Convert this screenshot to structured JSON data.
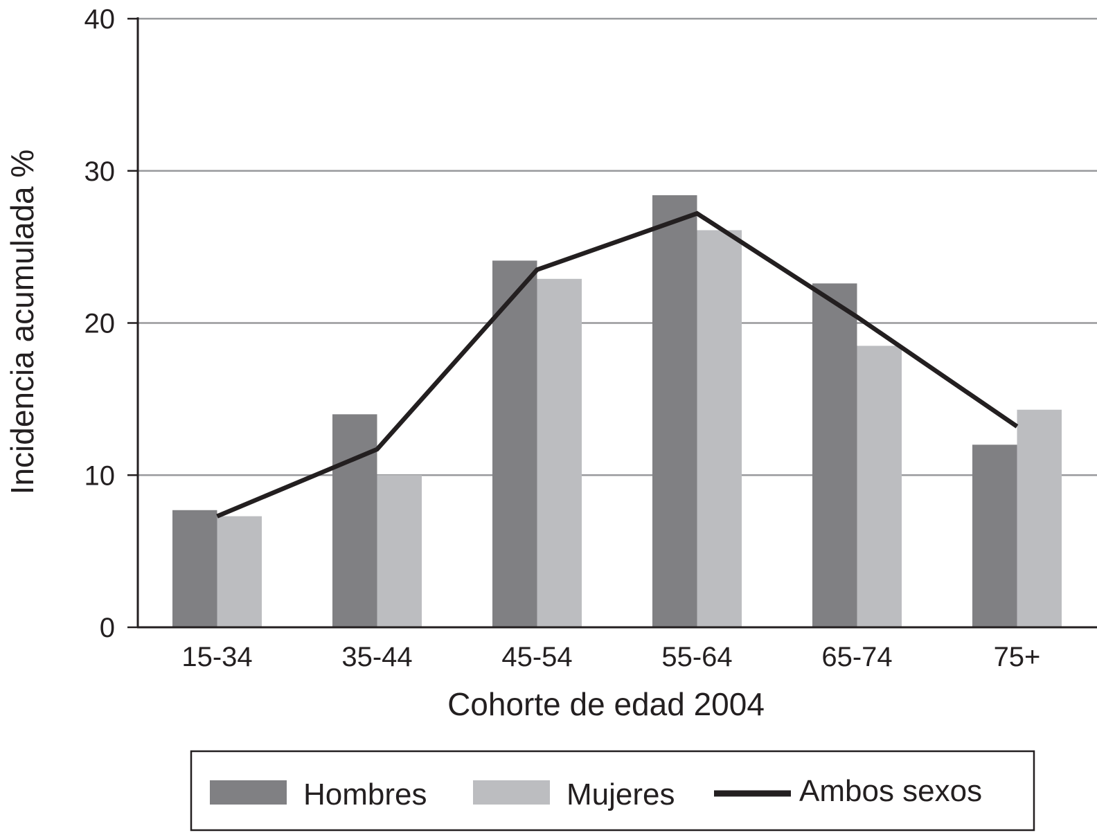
{
  "chart_data": {
    "type": "bar",
    "xlabel": "Cohorte de edad 2004",
    "ylabel": "Incidencia acumulada %",
    "categories": [
      "15-34",
      "35-44",
      "45-54",
      "55-64",
      "65-74",
      "75+"
    ],
    "ylim": [
      0,
      40
    ],
    "yticks": [
      "0",
      "10",
      "20",
      "30",
      "40"
    ],
    "grid": true,
    "legend_position": "bottom",
    "series": [
      {
        "name": "Hombres",
        "kind": "bar",
        "color": "#808083",
        "values": [
          7.7,
          14.0,
          24.1,
          28.4,
          22.6,
          12.0
        ]
      },
      {
        "name": "Mujeres",
        "kind": "bar",
        "color": "#bcbdc0",
        "values": [
          7.3,
          10.0,
          22.9,
          26.1,
          18.5,
          14.3
        ]
      },
      {
        "name": "Ambos sexos",
        "kind": "line",
        "color": "#231f20",
        "values": [
          7.3,
          11.7,
          23.5,
          27.2,
          20.4,
          13.2
        ]
      }
    ]
  }
}
